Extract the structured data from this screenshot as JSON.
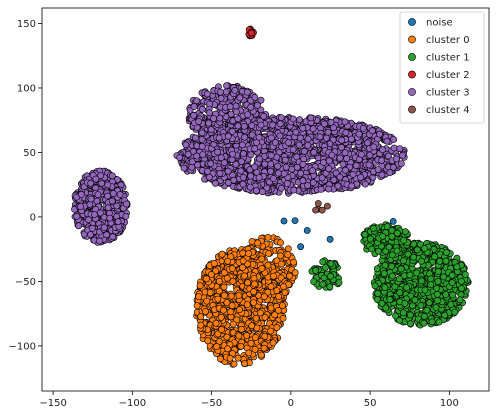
{
  "chart_data": {
    "type": "scatter",
    "title": "",
    "xlabel": "",
    "ylabel": "",
    "xlim": [
      -157,
      125
    ],
    "ylim": [
      -135,
      162
    ],
    "xticks": [
      -150,
      -100,
      -50,
      0,
      50,
      100
    ],
    "yticks": [
      -100,
      -50,
      0,
      50,
      100,
      150
    ],
    "tick_labels_x": [
      "−150",
      "−100",
      "−50",
      "0",
      "50",
      "100"
    ],
    "tick_labels_y": [
      "−100",
      "−50",
      "0",
      "50",
      "100",
      "150"
    ],
    "grid": false,
    "legend_position": "top-right",
    "series": [
      {
        "name": "noise",
        "color": "#1f77b4",
        "clusters": [
          {
            "cx": 30,
            "cy": -10,
            "rx": 40,
            "ry": 20,
            "n": 6
          }
        ]
      },
      {
        "name": "cluster 0",
        "color": "#ff7f0e",
        "clusters": [
          {
            "cx": -32,
            "cy": -70,
            "rx": 28,
            "ry": 45,
            "n": 900
          },
          {
            "cx": -15,
            "cy": -40,
            "rx": 18,
            "ry": 25,
            "n": 250
          }
        ]
      },
      {
        "name": "cluster 1",
        "color": "#2ca02c",
        "clusters": [
          {
            "cx": 82,
            "cy": -52,
            "rx": 30,
            "ry": 32,
            "n": 900
          },
          {
            "cx": 60,
            "cy": -18,
            "rx": 15,
            "ry": 12,
            "n": 200
          },
          {
            "cx": 22,
            "cy": -45,
            "rx": 10,
            "ry": 12,
            "n": 60
          }
        ]
      },
      {
        "name": "cluster 2",
        "color": "#d62728",
        "clusters": [
          {
            "cx": -25,
            "cy": 143,
            "rx": 1.6,
            "ry": 3.5,
            "n": 14
          }
        ]
      },
      {
        "name": "cluster 3",
        "color": "#9467bd",
        "clusters": [
          {
            "cx": 0,
            "cy": 48,
            "rx": 72,
            "ry": 30,
            "n": 1800
          },
          {
            "cx": -40,
            "cy": 80,
            "rx": 25,
            "ry": 22,
            "n": 300
          },
          {
            "cx": -120,
            "cy": 8,
            "rx": 17,
            "ry": 28,
            "n": 500
          }
        ]
      },
      {
        "name": "cluster 4",
        "color": "#8c564b",
        "clusters": [
          {
            "cx": 18,
            "cy": 8,
            "rx": 6,
            "ry": 3,
            "n": 5
          }
        ]
      }
    ]
  }
}
